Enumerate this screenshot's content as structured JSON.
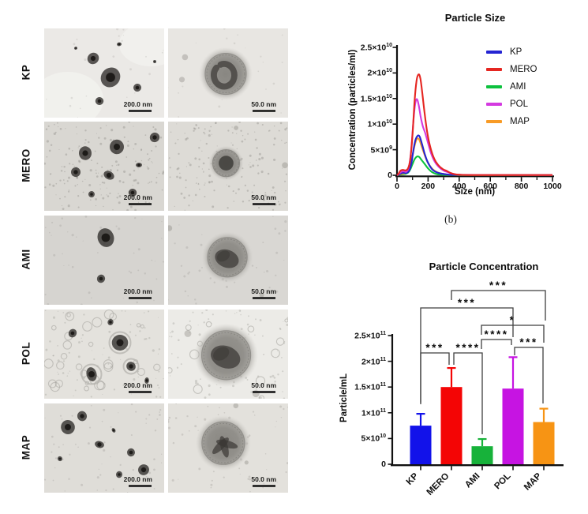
{
  "tem": {
    "rows": [
      {
        "label": "KP",
        "left_scale": "200.0 nm",
        "right_scale": "50.0 nm"
      },
      {
        "label": "MERO",
        "left_scale": "200.0 nm",
        "right_scale": "50.0 nm"
      },
      {
        "label": "AMI",
        "left_scale": "200.0 nm",
        "right_scale": "50.0 nm"
      },
      {
        "label": "POL",
        "left_scale": "200.0 nm",
        "right_scale": "50.0 nm"
      },
      {
        "label": "MAP",
        "left_scale": "200.0 nm",
        "right_scale": "50.0 nm"
      }
    ]
  },
  "caption_b": "(b)",
  "chart_data": [
    {
      "type": "line",
      "title": "Particle Size",
      "xlabel": "Size (nm)",
      "ylabel": "Concentration (particles/ml)",
      "xlim": [
        0,
        1000
      ],
      "xticks": [
        0,
        200,
        400,
        600,
        800,
        1000
      ],
      "x_minor_step": 100,
      "ylim": [
        0,
        25000000000.0
      ],
      "yticks": [
        {
          "text": "0",
          "sup": "",
          "value": 0
        },
        {
          "text": "5×10",
          "sup": "9",
          "value": 5000000000.0
        },
        {
          "text": "1×10",
          "sup": "10",
          "value": 10000000000.0
        },
        {
          "text": "1.5×10",
          "sup": "10",
          "value": 15000000000.0
        },
        {
          "text": "2×10",
          "sup": "10",
          "value": 20000000000.0
        },
        {
          "text": "2.5×10",
          "sup": "10",
          "value": 25000000000.0
        }
      ],
      "legend_position": "top-right",
      "grid": false,
      "series": [
        {
          "name": "KP",
          "color": "#2424d2",
          "points": [
            [
              0,
              0
            ],
            [
              15,
              200000000.0
            ],
            [
              30,
              450000000.0
            ],
            [
              45,
              500000000.0
            ],
            [
              60,
              450000000.0
            ],
            [
              78,
              900000000.0
            ],
            [
              92,
              2200000000.0
            ],
            [
              105,
              4800000000.0
            ],
            [
              118,
              6800000000.0
            ],
            [
              132,
              7700000000.0
            ],
            [
              145,
              7600000000.0
            ],
            [
              160,
              6200000000.0
            ],
            [
              180,
              4000000000.0
            ],
            [
              200,
              2400000000.0
            ],
            [
              225,
              1200000000.0
            ],
            [
              250,
              650000000.0
            ],
            [
              280,
              350000000.0
            ],
            [
              315,
              180000000.0
            ],
            [
              355,
              80000000.0
            ],
            [
              400,
              60000000.0
            ],
            [
              500,
              60000000.0
            ],
            [
              700,
              60000000.0
            ],
            [
              1000,
              60000000.0
            ]
          ]
        },
        {
          "name": "MERO",
          "color": "#e52621",
          "points": [
            [
              0,
              0
            ],
            [
              12,
              400000000.0
            ],
            [
              22,
              900000000.0
            ],
            [
              38,
              1050000000.0
            ],
            [
              55,
              950000000.0
            ],
            [
              70,
              1300000000.0
            ],
            [
              85,
              3000000000.0
            ],
            [
              100,
              8000000000.0
            ],
            [
              113,
              14500000000.0
            ],
            [
              126,
              18500000000.0
            ],
            [
              138,
              19700000000.0
            ],
            [
              150,
              19000000000.0
            ],
            [
              163,
              16000000000.0
            ],
            [
              178,
              12000000000.0
            ],
            [
              195,
              8300000000.0
            ],
            [
              215,
              5400000000.0
            ],
            [
              240,
              3200000000.0
            ],
            [
              265,
              2000000000.0
            ],
            [
              295,
              1200000000.0
            ],
            [
              320,
              850000000.0
            ],
            [
              345,
              450000000.0
            ],
            [
              375,
              180000000.0
            ],
            [
              420,
              80000000.0
            ],
            [
              520,
              50000000.0
            ],
            [
              1000,
              40000000.0
            ]
          ]
        },
        {
          "name": "AMI",
          "color": "#0dc13e",
          "points": [
            [
              0,
              0
            ],
            [
              25,
              150000000.0
            ],
            [
              50,
              250000000.0
            ],
            [
              70,
              500000000.0
            ],
            [
              85,
              1100000000.0
            ],
            [
              100,
              2200000000.0
            ],
            [
              114,
              3200000000.0
            ],
            [
              128,
              3650000000.0
            ],
            [
              142,
              3600000000.0
            ],
            [
              158,
              3000000000.0
            ],
            [
              178,
              2200000000.0
            ],
            [
              198,
              1400000000.0
            ],
            [
              222,
              700000000.0
            ],
            [
              248,
              300000000.0
            ],
            [
              278,
              120000000.0
            ],
            [
              320,
              50000000.0
            ],
            [
              420,
              30000000.0
            ],
            [
              1000,
              30000000.0
            ]
          ]
        },
        {
          "name": "POL",
          "color": "#d43ae0",
          "points": [
            [
              0,
              0
            ],
            [
              14,
              350000000.0
            ],
            [
              28,
              700000000.0
            ],
            [
              45,
              750000000.0
            ],
            [
              60,
              700000000.0
            ],
            [
              75,
              1500000000.0
            ],
            [
              90,
              4500000000.0
            ],
            [
              104,
              10000000000.0
            ],
            [
              116,
              13800000000.0
            ],
            [
              127,
              14900000000.0
            ],
            [
              139,
              13800000000.0
            ],
            [
              152,
              11500000000.0
            ],
            [
              166,
              9600000000.0
            ],
            [
              182,
              8200000000.0
            ],
            [
              198,
              6500000000.0
            ],
            [
              218,
              4400000000.0
            ],
            [
              242,
              2700000000.0
            ],
            [
              268,
              1650000000.0
            ],
            [
              298,
              950000000.0
            ],
            [
              328,
              600000000.0
            ],
            [
              358,
              300000000.0
            ],
            [
              395,
              120000000.0
            ],
            [
              500,
              70000000.0
            ],
            [
              1000,
              50000000.0
            ]
          ]
        },
        {
          "name": "MAP",
          "color": "#f89b26",
          "points": [
            [
              0,
              0
            ],
            [
              25,
              250000000.0
            ],
            [
              50,
              400000000.0
            ],
            [
              70,
              800000000.0
            ],
            [
              85,
              1800000000.0
            ],
            [
              100,
              3900000000.0
            ],
            [
              114,
              5900000000.0
            ],
            [
              128,
              7100000000.0
            ],
            [
              142,
              7000000000.0
            ],
            [
              158,
              5700000000.0
            ],
            [
              175,
              4200000000.0
            ],
            [
              195,
              2700000000.0
            ],
            [
              220,
              1500000000.0
            ],
            [
              245,
              800000000.0
            ],
            [
              275,
              400000000.0
            ],
            [
              312,
              180000000.0
            ],
            [
              360,
              80000000.0
            ],
            [
              500,
              50000000.0
            ],
            [
              1000,
              40000000.0
            ]
          ]
        }
      ]
    },
    {
      "type": "bar",
      "title": "Particle Concentration",
      "ylabel": "Particle/mL",
      "categories": [
        "KP",
        "MERO",
        "AMI",
        "POL",
        "MAP"
      ],
      "values": [
        75000000000.0,
        150000000000.0,
        35000000000.0,
        147000000000.0,
        82000000000.0
      ],
      "errors_upper": [
        23000000000.0,
        37000000000.0,
        14000000000.0,
        61000000000.0,
        26000000000.0
      ],
      "bar_colors": [
        "#1212ea",
        "#f40505",
        "#17b23a",
        "#c614e2",
        "#f79414"
      ],
      "ylim": [
        0,
        250000000000.0
      ],
      "yticks": [
        {
          "text": "0",
          "sup": "",
          "value": 0
        },
        {
          "text": "5×10",
          "sup": "10",
          "value": 50000000000.0
        },
        {
          "text": "1×10",
          "sup": "11",
          "value": 100000000000.0
        },
        {
          "text": "1.5×10",
          "sup": "11",
          "value": 150000000000.0
        },
        {
          "text": "2×10",
          "sup": "11",
          "value": 200000000000.0
        },
        {
          "text": "2.5×10",
          "sup": "11",
          "value": 250000000000.0
        }
      ],
      "grid": false,
      "significance": [
        {
          "pair": [
            "KP",
            "MERO"
          ],
          "stars": "***"
        },
        {
          "pair": [
            "MERO",
            "AMI"
          ],
          "stars": "****"
        },
        {
          "pair": [
            "AMI",
            "POL"
          ],
          "stars": "****"
        },
        {
          "pair": [
            "POL",
            "MAP"
          ],
          "stars": "***"
        },
        {
          "pair": [
            "AMI",
            "MAP"
          ],
          "stars": "*"
        },
        {
          "pair": [
            "KP",
            "POL"
          ],
          "stars": "***"
        },
        {
          "pair": [
            "MERO",
            "MAP"
          ],
          "stars": "***"
        }
      ]
    }
  ]
}
